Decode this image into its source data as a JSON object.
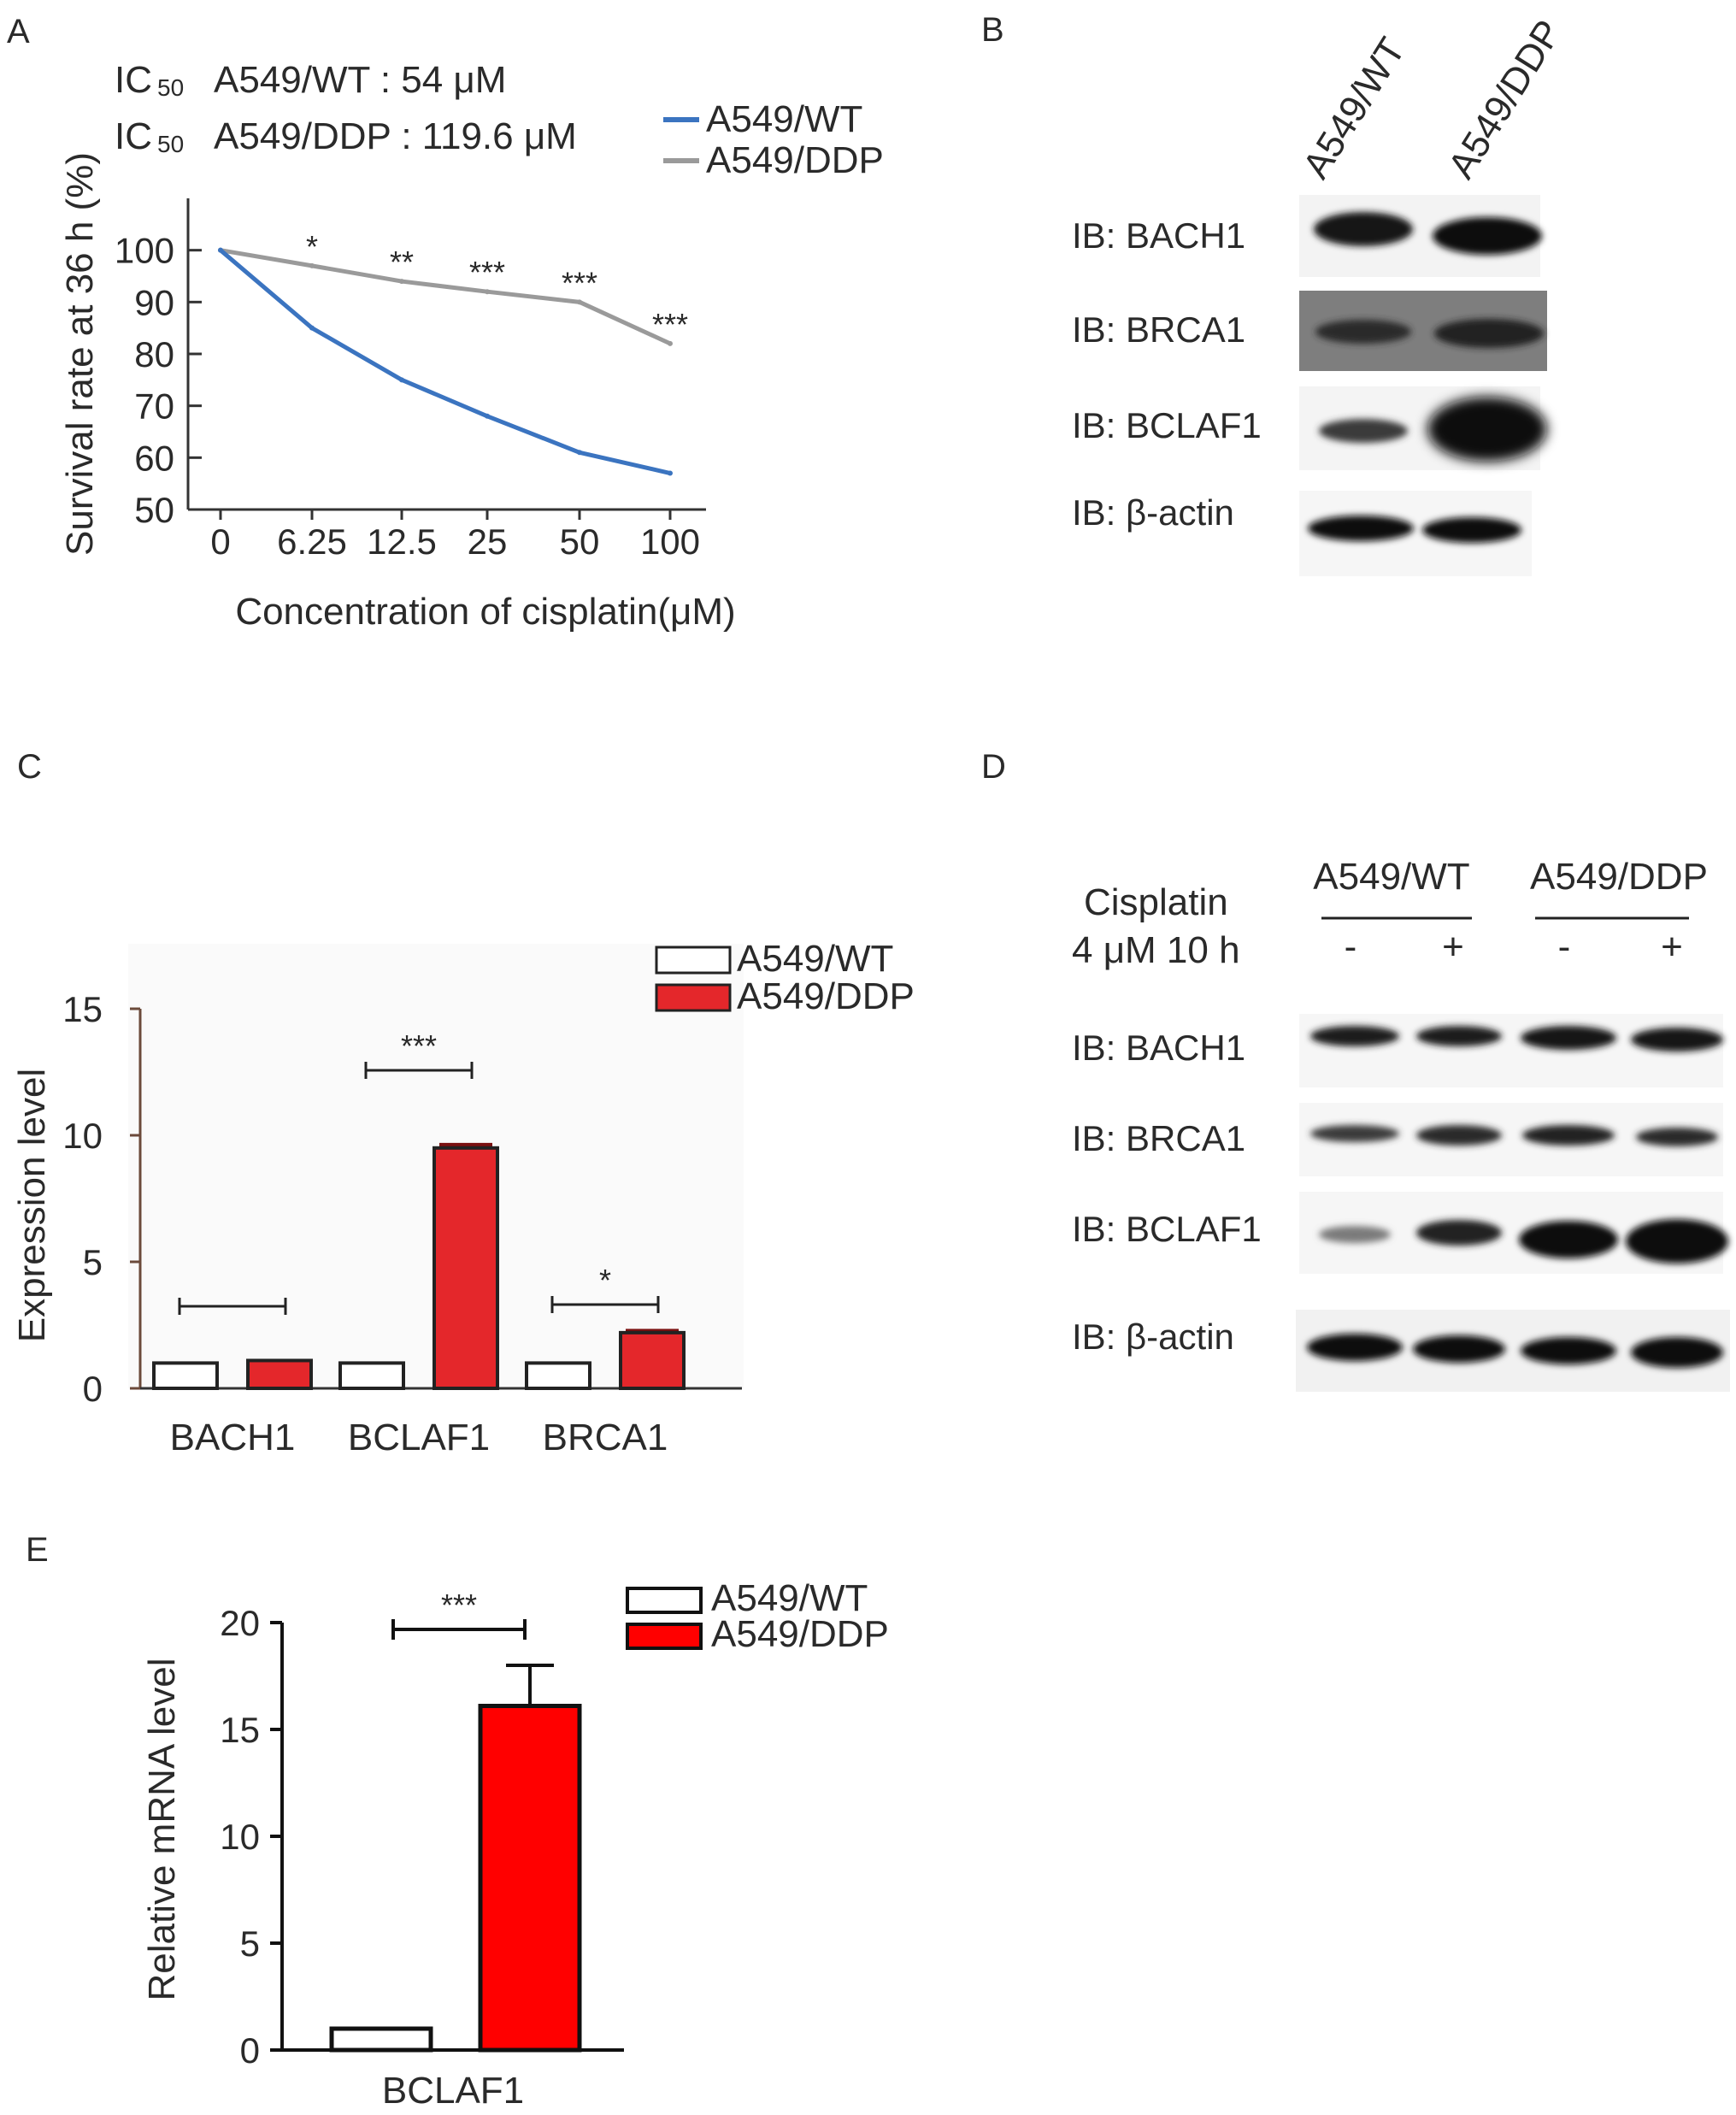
{
  "panels": {
    "A": "A",
    "B": "B",
    "C": "C",
    "D": "D",
    "E": "E"
  },
  "panelA": {
    "ic50_lines": [
      {
        "prefix": "IC",
        "sub": "50",
        "text": "A549/WT : 54 μM"
      },
      {
        "prefix": "IC",
        "sub": "50",
        "text": "A549/DDP : 119.6 μM"
      }
    ],
    "chart_data": {
      "type": "line",
      "categories": [
        "0",
        "6.25",
        "12.5",
        "25",
        "50",
        "100"
      ],
      "series": [
        {
          "name": "A549/WT",
          "color": "#3b74c0",
          "values": [
            100,
            85,
            75,
            68,
            61,
            57
          ]
        },
        {
          "name": "A549/DDP",
          "color": "#9a9a9a",
          "values": [
            100,
            97,
            94,
            92,
            90,
            82
          ]
        }
      ],
      "significance": [
        "",
        "*",
        "**",
        "***",
        "***",
        "***"
      ],
      "ylabel": "Survival rate at 36 h (%)",
      "xlabel": "Concentration of cisplatin(μM)",
      "yticks": [
        100,
        90,
        80,
        70,
        60,
        50
      ],
      "ylim": [
        50,
        110
      ],
      "legend_position": "top-right"
    }
  },
  "panelB": {
    "lanes": [
      "A549/WT",
      "A549/DDP"
    ],
    "blots": [
      "IB: BACH1",
      "IB: BRCA1",
      "IB: BCLAF1",
      "IB: β-actin"
    ]
  },
  "panelC": {
    "chart_data": {
      "type": "bar",
      "categories": [
        "BACH1",
        "BCLAF1",
        "BRCA1"
      ],
      "series": [
        {
          "name": "A549/WT",
          "color": "#ffffff",
          "values": [
            1,
            1,
            1
          ]
        },
        {
          "name": "A549/DDP",
          "color": "#e4272b",
          "values": [
            1.1,
            9.5,
            2.2
          ]
        }
      ],
      "errors": [
        0,
        0.2,
        0.15
      ],
      "significance": [
        "",
        "***",
        "*"
      ],
      "ylabel": "Expression level",
      "yticks": [
        15,
        10,
        5,
        0
      ],
      "ylim": [
        0,
        15
      ],
      "legend_position": "top-right"
    }
  },
  "panelD": {
    "row_label_1": "Cisplatin",
    "row_label_2": "4 μM 10 h",
    "groups": [
      "A549/WT",
      "A549/DDP"
    ],
    "treatments": [
      "-",
      "+",
      "-",
      "+"
    ],
    "blots": [
      "IB: BACH1",
      "IB: BRCA1",
      "IB: BCLAF1",
      "IB: β-actin"
    ]
  },
  "panelE": {
    "chart_data": {
      "type": "bar",
      "categories": [
        "BCLAF1"
      ],
      "series": [
        {
          "name": "A549/WT",
          "color": "#ffffff",
          "values": [
            1
          ]
        },
        {
          "name": "A549/DDP",
          "color": "#ff0000",
          "values": [
            16.1
          ]
        }
      ],
      "errors": [
        0,
        1.9
      ],
      "significance": [
        "***"
      ],
      "ylabel": "Relative mRNA level",
      "yticks": [
        20,
        15,
        10,
        5,
        0
      ],
      "ylim": [
        0,
        20
      ],
      "legend_position": "top-right"
    }
  }
}
